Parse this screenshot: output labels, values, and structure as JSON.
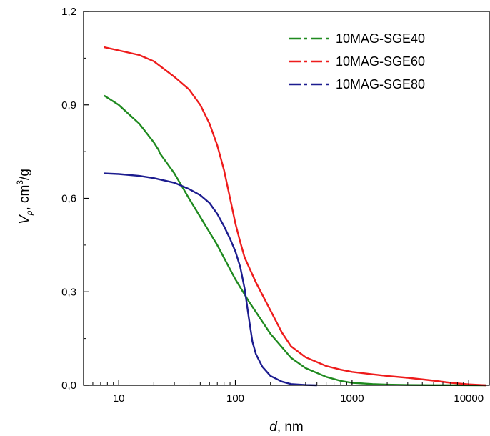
{
  "chart_data": {
    "type": "line",
    "title": "",
    "xlabel": {
      "italic": "d",
      "rest": ", nm"
    },
    "ylabel": {
      "main": "V",
      "sub": "p",
      "sep": ", cm",
      "sup": "3",
      "rest": "/g"
    },
    "xscale": "log",
    "xlim": [
      5,
      15000
    ],
    "ylim": [
      0,
      1.2
    ],
    "x_ticks": [
      {
        "value": 10,
        "label": "10"
      },
      {
        "value": 100,
        "label": "100"
      },
      {
        "value": 1000,
        "label": "1000"
      },
      {
        "value": 10000,
        "label": "10000"
      }
    ],
    "y_ticks": [
      {
        "value": 0,
        "label": "0,0"
      },
      {
        "value": 0.3,
        "label": "0,3"
      },
      {
        "value": 0.6,
        "label": "0,6"
      },
      {
        "value": 0.9,
        "label": "0,9"
      },
      {
        "value": 1.2,
        "label": "1,2"
      }
    ],
    "grid": false,
    "legend_position": "top-right",
    "series": [
      {
        "name": "10MAG-SGE40",
        "color": "#1f8a1f",
        "x": [
          7.5,
          10,
          15,
          20,
          22,
          22.5,
          30,
          40,
          50,
          70,
          100,
          130,
          150,
          200,
          300,
          400,
          600,
          800,
          1000,
          1500,
          2000,
          3000,
          5000,
          10000,
          14000
        ],
        "y": [
          0.93,
          0.9,
          0.84,
          0.78,
          0.755,
          0.745,
          0.68,
          0.6,
          0.54,
          0.45,
          0.34,
          0.27,
          0.235,
          0.165,
          0.088,
          0.055,
          0.027,
          0.014,
          0.008,
          0.004,
          0.002,
          0.001,
          0.0005,
          0.0002,
          0
        ]
      },
      {
        "name": "10MAG-SGE60",
        "color": "#ee1c1c",
        "x": [
          7.5,
          10,
          15,
          20,
          30,
          40,
          50,
          60,
          70,
          80,
          90,
          100,
          110,
          120,
          150,
          200,
          250,
          300,
          400,
          600,
          800,
          1000,
          1500,
          2000,
          3000,
          5000,
          7000,
          10000,
          14000
        ],
        "y": [
          1.085,
          1.075,
          1.06,
          1.04,
          0.99,
          0.95,
          0.9,
          0.84,
          0.77,
          0.69,
          0.6,
          0.52,
          0.46,
          0.41,
          0.33,
          0.24,
          0.17,
          0.125,
          0.09,
          0.062,
          0.05,
          0.043,
          0.035,
          0.03,
          0.024,
          0.015,
          0.008,
          0.003,
          0
        ]
      },
      {
        "name": "10MAG-SGE80",
        "color": "#1c1c8f",
        "x": [
          7.5,
          10,
          15,
          20,
          30,
          40,
          50,
          60,
          70,
          80,
          90,
          100,
          110,
          120,
          130,
          140,
          150,
          170,
          200,
          250,
          300,
          400,
          500
        ],
        "y": [
          0.68,
          0.678,
          0.672,
          0.665,
          0.65,
          0.63,
          0.61,
          0.585,
          0.55,
          0.51,
          0.47,
          0.43,
          0.38,
          0.31,
          0.22,
          0.14,
          0.1,
          0.06,
          0.03,
          0.012,
          0.004,
          0.001,
          0
        ]
      }
    ]
  }
}
